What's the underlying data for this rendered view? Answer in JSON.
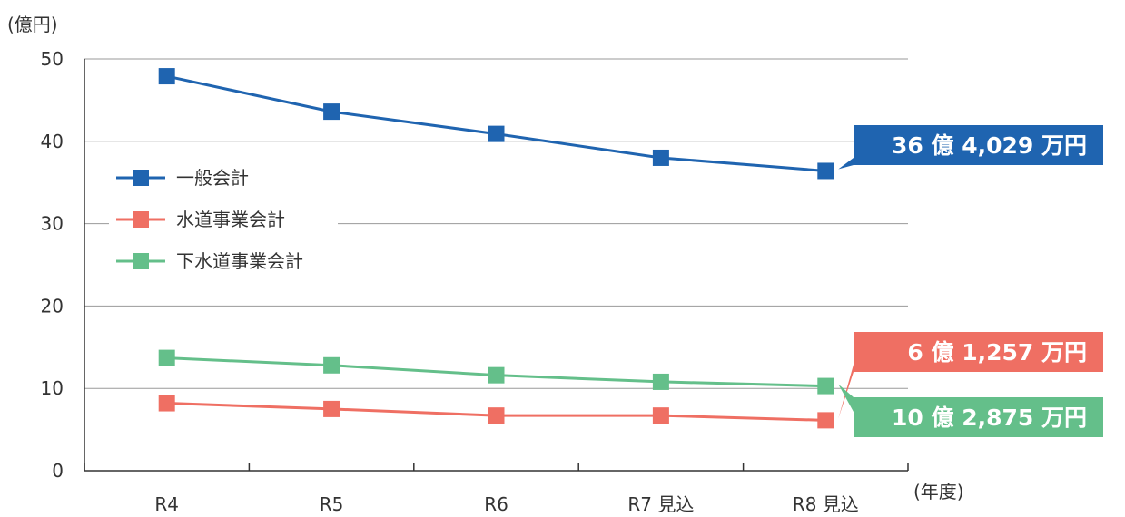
{
  "chart_data": {
    "type": "line",
    "y_unit": "(億円)",
    "x_unit": "(年度)",
    "categories": [
      "R4",
      "R5",
      "R6",
      "R7 見込",
      "R8 見込"
    ],
    "ylim": [
      0,
      50
    ],
    "y_ticks": [
      "0",
      "10",
      "20",
      "30",
      "40",
      "50"
    ],
    "y_tick_values": [
      0,
      10,
      20,
      30,
      40,
      50
    ],
    "grid": "horizontal",
    "legend_position": "left-center",
    "series": [
      {
        "name": "一般会計",
        "color": "#1f64b0",
        "values": [
          47.9,
          43.6,
          40.9,
          38.0,
          36.4029
        ],
        "callout": "36 億 4,029 万円"
      },
      {
        "name": "水道事業会計",
        "color": "#ef6f63",
        "values": [
          8.2,
          7.5,
          6.7,
          6.7,
          6.1257
        ],
        "callout": "6 億 1,257 万円"
      },
      {
        "name": "下水道事業会計",
        "color": "#64bf8a",
        "values": [
          13.7,
          12.8,
          11.6,
          10.8,
          10.2875
        ],
        "callout": "10 億 2,875 万円"
      }
    ]
  }
}
